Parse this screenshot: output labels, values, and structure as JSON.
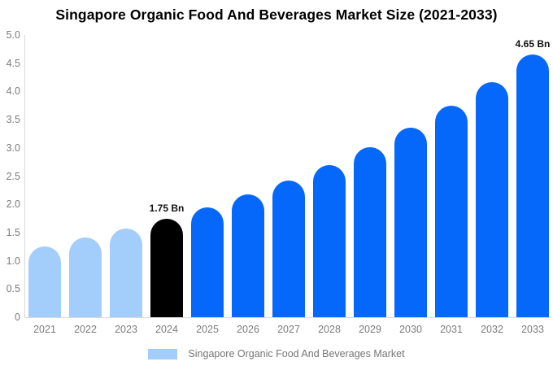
{
  "chart_data": {
    "type": "bar",
    "title": "Singapore Organic Food And Beverages Market Size (2021-2033)",
    "categories": [
      "2021",
      "2022",
      "2023",
      "2024",
      "2025",
      "2026",
      "2027",
      "2028",
      "2029",
      "2030",
      "2031",
      "2032",
      "2033"
    ],
    "series": [
      {
        "name": "Singapore Organic Food And Beverages Market",
        "values": [
          1.26,
          1.41,
          1.57,
          1.75,
          1.95,
          2.17,
          2.42,
          2.7,
          3.01,
          3.36,
          3.74,
          4.17,
          4.65
        ]
      }
    ],
    "unit": "Bn",
    "data_labels": {
      "2024": "1.75 Bn",
      "2033": "4.65 Bn"
    },
    "ylim": [
      0,
      5
    ],
    "yticks": [
      "5.0",
      "4.5",
      "4.0",
      "3.5",
      "3.0",
      "2.5",
      "2.0",
      "1.5",
      "1.0",
      "0.5",
      "0"
    ],
    "grid": false,
    "legend_position": "bottom",
    "colors": {
      "historical": "#a3cdfa",
      "base_year": "#000000",
      "forecast": "#0568fb",
      "axis_line": "#d9d9d9",
      "axis_text": "#7b7b7b",
      "label_text": "#111111",
      "legend_text": "#757575"
    },
    "bar_colors": [
      "#a3cdfa",
      "#a3cdfa",
      "#a3cdfa",
      "#000000",
      "#0568fb",
      "#0568fb",
      "#0568fb",
      "#0568fb",
      "#0568fb",
      "#0568fb",
      "#0568fb",
      "#0568fb",
      "#0568fb"
    ]
  },
  "legend": {
    "items": [
      {
        "label": "Singapore Organic Food And Beverages Market",
        "swatch_color": "#a3cdfa"
      }
    ]
  }
}
